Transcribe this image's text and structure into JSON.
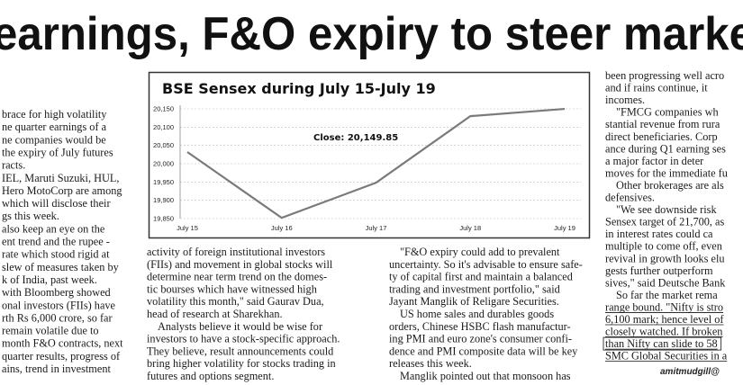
{
  "headline": "earnings, F&O expiry to steer marke",
  "columns": [
    [
      "brace for high volatility",
      "ne quarter earnings of a",
      "ne companies would be",
      "the expiry of July futures",
      "racts.",
      "IEL, Maruti Suzuki, HUL,",
      "Hero MotoCorp are among",
      "which will disclose their",
      "gs this week.",
      "also keep an eye on the",
      "ent trend and the rupee -",
      "rate which stood rigid at",
      "slew of measures taken by",
      "k of India, past week.",
      "with Bloomberg showed",
      "onal investors (FIIs) have",
      "rth Rs 6,000 crore, so far",
      "remain volatile due to",
      "month F&O contracts, next",
      "quarter results, progress of",
      "ains, trend in investment"
    ],
    [
      "activity of foreign institutional investors",
      "(FIIs) and movement in global stocks will",
      "determine near term trend on the domes-",
      "tic bourses which have witnessed high",
      "volatility this month,\" said Gaurav Dua,",
      "head of research at Sharekhan.",
      "Analysts believe it would be wise for",
      "investors to have a stock-specific approach.",
      "They believe, result announcements could",
      "bring higher volatility for stocks trading in",
      "futures and options segment."
    ],
    [
      "\"F&O expiry could add to prevalent",
      "uncertainty. So it's advisable to ensure safe-",
      "ty of capital first and maintain a balanced",
      "trading and investment portfolio,\" said",
      "Jayant Manglik of Religare Securities.",
      "US home sales and durables goods",
      "orders, Chinese HSBC flash manufactur-",
      "ing PMI and euro zone's consumer confi-",
      "dence and PMI composite data will be key",
      "releases this week.",
      "Manglik pointed out that monsoon has"
    ],
    [
      "been progressing well acro",
      "and if rains continue, it",
      "incomes.",
      "\"FMCG companies wh",
      "stantial revenue from rura",
      "direct beneficiaries. Corp",
      "ance during Q1 earning ses",
      "a major factor in deter",
      "moves for the immediate fu",
      "Other brokerages are als",
      "defensives.",
      "\"We see downside risk",
      "Sensex target of 21,700, as",
      "in interest rates could ca",
      "multiple to come off, even",
      "revival in growth looks elu",
      "gests further outperform",
      "sives,\" said Deutsche Bank",
      "So far the market rema",
      "range bound. \"Nifty is stro",
      "6,100 mark; hence level of",
      "closely watched. If broken",
      "than Nifty can slide to 58",
      "SMC Global Securities in a"
    ]
  ],
  "byline": "amitmudgill@",
  "chart_data": {
    "type": "line",
    "title": "BSE Sensex during July 15-July 19",
    "categories": [
      "July 15",
      "July 16",
      "July 17",
      "July 18",
      "July 19"
    ],
    "values": [
      20032,
      19852,
      19948,
      20130,
      20149.85
    ],
    "annotation": "Close: 20,149.85",
    "color": "#7a7a7a",
    "grid": true,
    "ylim": [
      19850,
      20150
    ],
    "yticks": [
      {
        "value": 19850,
        "label": "19,850"
      },
      {
        "value": 19900,
        "label": "19,900"
      },
      {
        "value": 19950,
        "label": "19,950"
      },
      {
        "value": 20000,
        "label": "20,000"
      },
      {
        "value": 20050,
        "label": "20,050"
      },
      {
        "value": 20100,
        "label": "20,100"
      },
      {
        "value": 20150,
        "label": "20,150"
      }
    ]
  }
}
